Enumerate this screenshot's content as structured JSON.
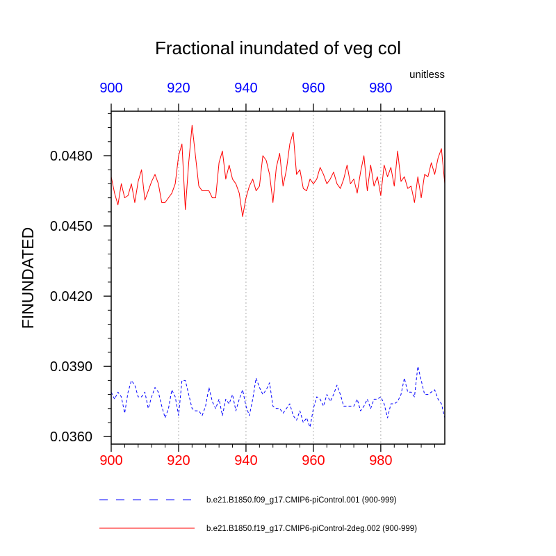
{
  "chart_data": {
    "type": "line",
    "title": "Fractional inundated of veg col",
    "units": "unitless",
    "ylabel": "FINUNDATED",
    "xlim": [
      900,
      999
    ],
    "ylim": [
      0.03568,
      0.0499
    ],
    "x_ticks": [
      "900",
      "920",
      "940",
      "960",
      "980"
    ],
    "y_ticks": [
      "0.0360",
      "0.0390",
      "0.0420",
      "0.0450",
      "0.0480"
    ],
    "grid": "vertical dotted at major x ticks",
    "colors": {
      "bottom_axis_labels": "#ff0000",
      "top_axis_labels": "#0000ff",
      "grid": "#b0b0b0"
    },
    "x_start": 900,
    "series": [
      {
        "name": "b.e21.B1850.f09_g17.CMIP6-piControl.001 (900-999)",
        "color": "#0000ff",
        "style": "dashed",
        "values": [
          0.0379,
          0.0376,
          0.0379,
          0.0377,
          0.037,
          0.0379,
          0.0384,
          0.0382,
          0.0377,
          0.0377,
          0.0379,
          0.0372,
          0.0377,
          0.0381,
          0.0379,
          0.0373,
          0.0368,
          0.0372,
          0.038,
          0.0377,
          0.0369,
          0.0384,
          0.0384,
          0.0378,
          0.0372,
          0.0371,
          0.0371,
          0.0369,
          0.0373,
          0.0381,
          0.0375,
          0.0372,
          0.0376,
          0.0369,
          0.0376,
          0.0374,
          0.0378,
          0.0371,
          0.0376,
          0.038,
          0.0373,
          0.0369,
          0.0376,
          0.0385,
          0.0381,
          0.0378,
          0.038,
          0.0383,
          0.0373,
          0.0372,
          0.0372,
          0.037,
          0.0372,
          0.0374,
          0.0369,
          0.0367,
          0.0371,
          0.0366,
          0.0368,
          0.0364,
          0.0372,
          0.0377,
          0.0376,
          0.0373,
          0.0378,
          0.0375,
          0.0378,
          0.0382,
          0.0378,
          0.0373,
          0.0373,
          0.0373,
          0.0373,
          0.0376,
          0.0371,
          0.0373,
          0.0376,
          0.0372,
          0.0376,
          0.0376,
          0.0377,
          0.0374,
          0.0368,
          0.0374,
          0.0374,
          0.0375,
          0.0378,
          0.0385,
          0.0379,
          0.0379,
          0.0377,
          0.039,
          0.0384,
          0.0378,
          0.0378,
          0.0379,
          0.038,
          0.0376,
          0.0374,
          0.0368
        ]
      },
      {
        "name": "b.e21.B1850.f19_g17.CMIP6-piControl-2deg.002 (900-999)",
        "color": "#ff0000",
        "style": "solid",
        "values": [
          0.0471,
          0.0464,
          0.0459,
          0.0468,
          0.0462,
          0.0463,
          0.0468,
          0.046,
          0.0469,
          0.0474,
          0.0461,
          0.0465,
          0.0469,
          0.0472,
          0.0468,
          0.046,
          0.046,
          0.0462,
          0.0464,
          0.0468,
          0.048,
          0.0485,
          0.0457,
          0.0477,
          0.0493,
          0.048,
          0.0467,
          0.0465,
          0.0465,
          0.0465,
          0.0462,
          0.0462,
          0.0477,
          0.0482,
          0.047,
          0.0476,
          0.047,
          0.0468,
          0.0464,
          0.0454,
          0.0462,
          0.0467,
          0.047,
          0.0465,
          0.0467,
          0.048,
          0.0478,
          0.0472,
          0.046,
          0.0475,
          0.0481,
          0.0467,
          0.0474,
          0.0485,
          0.049,
          0.0472,
          0.0474,
          0.0466,
          0.0465,
          0.047,
          0.0468,
          0.047,
          0.0475,
          0.0472,
          0.0468,
          0.047,
          0.0473,
          0.0468,
          0.0466,
          0.047,
          0.0476,
          0.0468,
          0.047,
          0.0464,
          0.0473,
          0.048,
          0.0465,
          0.0476,
          0.0467,
          0.0471,
          0.0463,
          0.0476,
          0.0471,
          0.0475,
          0.0467,
          0.0482,
          0.0469,
          0.0471,
          0.0466,
          0.0467,
          0.046,
          0.0471,
          0.0462,
          0.0472,
          0.0471,
          0.0477,
          0.0472,
          0.0479,
          0.0483,
          0.0468
        ]
      }
    ]
  }
}
